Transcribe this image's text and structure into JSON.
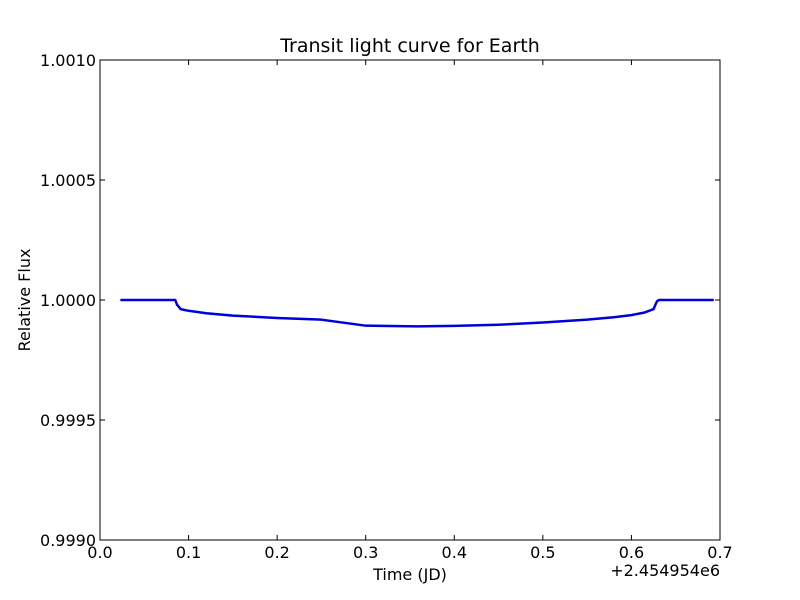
{
  "chart_data": {
    "type": "line",
    "title": "Transit light curve for Earth",
    "xlabel": "Time (JD)",
    "ylabel": "Relative Flux",
    "x_offset_label": "+2.454954e6",
    "xlim": [
      0.0,
      0.7
    ],
    "ylim": [
      0.999,
      1.001
    ],
    "x_ticks": [
      0.0,
      0.1,
      0.2,
      0.3,
      0.4,
      0.5,
      0.6,
      0.7
    ],
    "x_tick_labels": [
      "0.0",
      "0.1",
      "0.2",
      "0.3",
      "0.4",
      "0.5",
      "0.6",
      "0.7"
    ],
    "y_ticks": [
      0.999,
      0.9995,
      1.0,
      1.0005,
      1.001
    ],
    "y_tick_labels": [
      "0.9990",
      "0.9995",
      "1.0000",
      "1.0005",
      "1.0010"
    ],
    "grid": false,
    "series": [
      {
        "color": "#0000dd",
        "x": [
          0.023,
          0.05,
          0.085,
          0.087,
          0.089,
          0.091,
          0.1,
          0.12,
          0.15,
          0.2,
          0.25,
          0.3,
          0.358,
          0.4,
          0.45,
          0.5,
          0.55,
          0.58,
          0.6,
          0.615,
          0.625,
          0.627,
          0.629,
          0.631,
          0.66,
          0.693
        ],
        "y": [
          1.0,
          1.0,
          1.0,
          0.99998,
          0.999972,
          0.999962,
          0.999955,
          0.999945,
          0.999935,
          0.999925,
          0.999918,
          0.999893,
          0.99989,
          0.999892,
          0.999897,
          0.999906,
          0.999918,
          0.999928,
          0.999937,
          0.999948,
          0.999962,
          0.99998,
          0.999995,
          1.0,
          1.0,
          1.0
        ]
      }
    ]
  }
}
